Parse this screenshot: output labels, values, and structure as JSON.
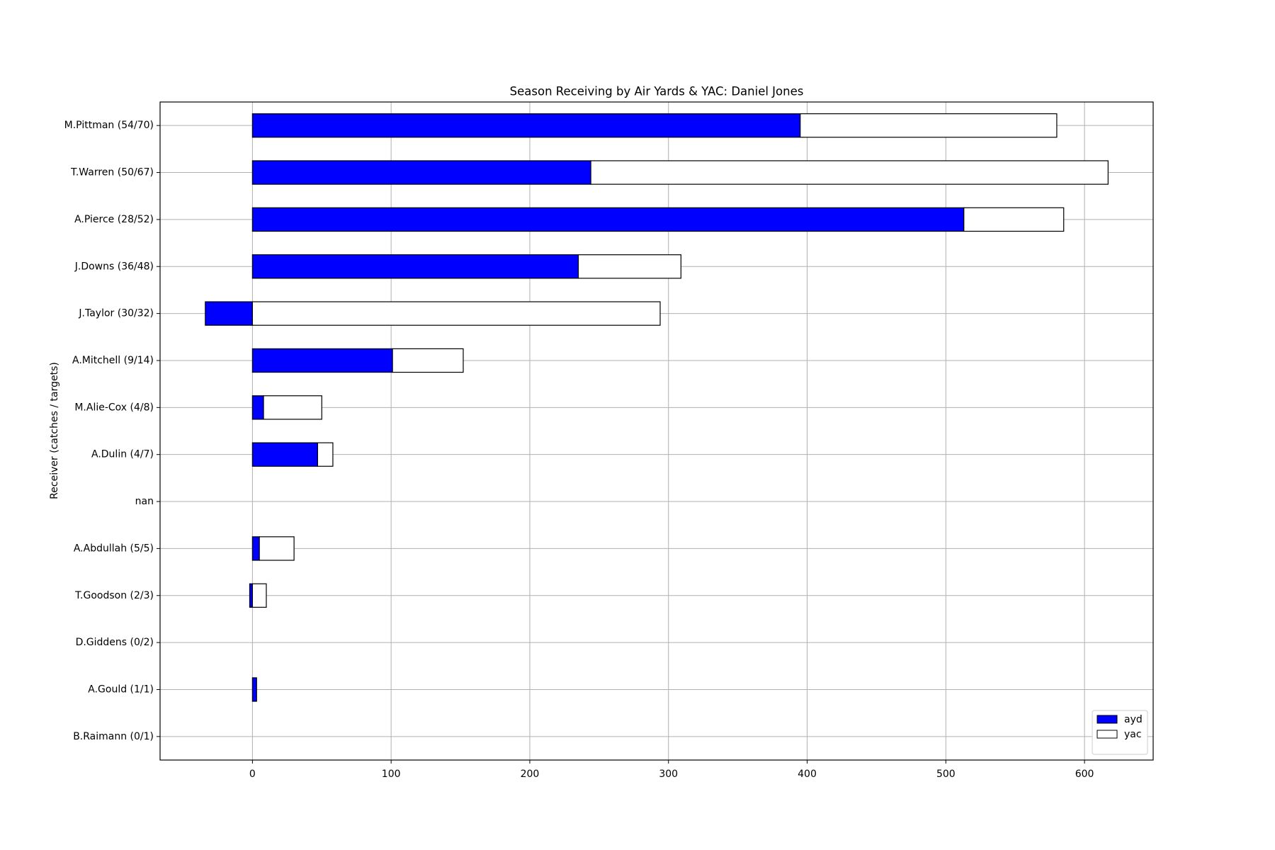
{
  "chart_data": {
    "type": "barh_stacked",
    "title": "Season Receiving by Air Yards & YAC: Daniel Jones",
    "ylabel": "Receiver (catches / targets)",
    "categories": [
      "M.Pittman (54/70)",
      "T.Warren (50/67)",
      "A.Pierce (28/52)",
      "J.Downs (36/48)",
      "J.Taylor (30/32)",
      "A.Mitchell (9/14)",
      "M.Alie-Cox (4/8)",
      "A.Dulin (4/7)",
      "nan",
      "A.Abdullah (5/5)",
      "T.Goodson (2/3)",
      "D.Giddens (0/2)",
      "A.Gould (1/1)",
      "B.Raimann (0/1)"
    ],
    "series": [
      {
        "name": "ayd",
        "color": "#0000ff",
        "values": [
          395,
          244,
          513,
          235,
          -34,
          101,
          8,
          47,
          0,
          5,
          -2,
          0,
          3,
          0
        ]
      },
      {
        "name": "yac",
        "color": "#ffffff",
        "values": [
          185,
          373,
          72,
          74,
          294,
          51,
          42,
          11,
          0,
          25,
          10,
          0,
          0,
          0
        ]
      }
    ],
    "xlim": [
      -66.6,
      649.5
    ],
    "xticks": [
      0,
      100,
      200,
      300,
      400,
      500,
      600
    ],
    "grid": true,
    "legend": "lower right"
  }
}
